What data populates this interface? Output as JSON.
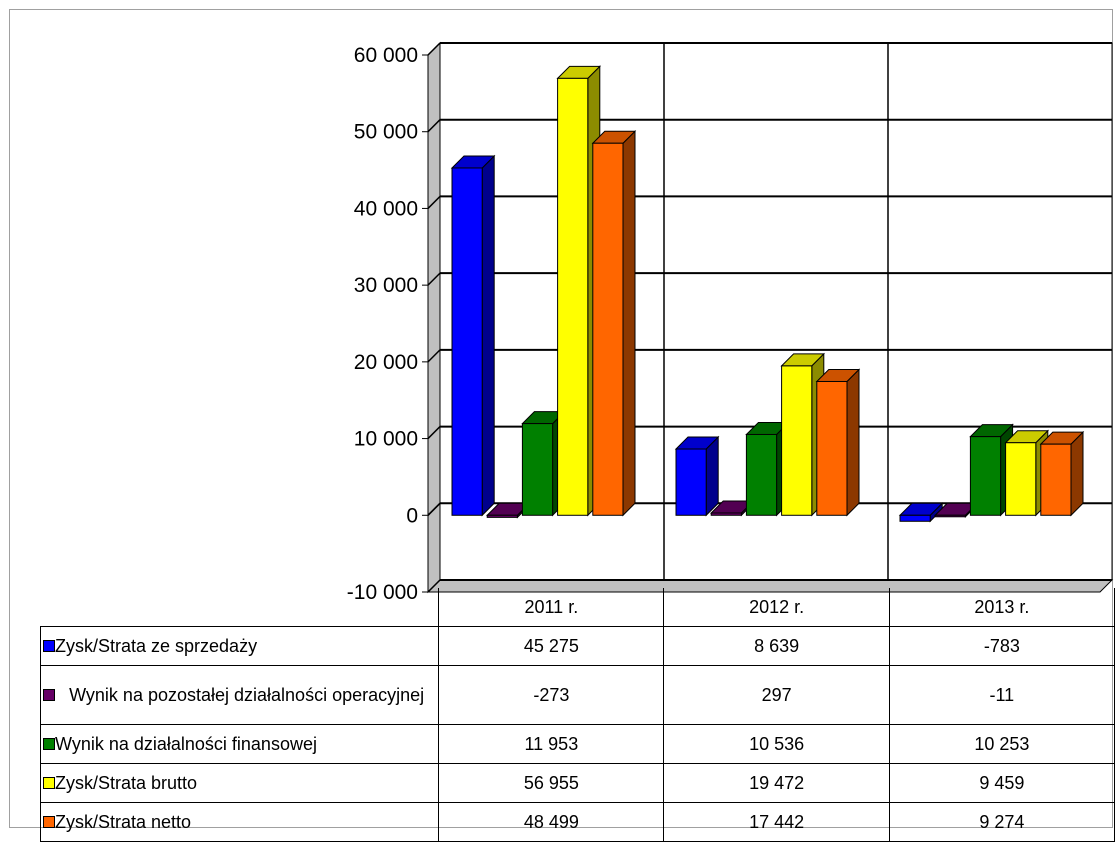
{
  "chart_data": {
    "type": "bar",
    "categories": [
      "2011 r.",
      "2012 r.",
      "2013 r."
    ],
    "series": [
      {
        "name": "Zysk/Strata ze sprzedaży",
        "values": [
          45275,
          8639,
          -783
        ],
        "labels": [
          "45 275",
          "8 639",
          "-783"
        ],
        "color": "#0000ff"
      },
      {
        "name": "Wynik na pozostałej działalności operacyjnej",
        "values": [
          -273,
          297,
          -11
        ],
        "labels": [
          "-273",
          "297",
          "-11"
        ],
        "color": "#660066"
      },
      {
        "name": "Wynik na działalności finansowej",
        "values": [
          11953,
          10536,
          10253
        ],
        "labels": [
          "11 953",
          "10 536",
          "10 253"
        ],
        "color": "#008000"
      },
      {
        "name": "Zysk/Strata brutto",
        "values": [
          56955,
          19472,
          9459
        ],
        "labels": [
          "56 955",
          "19 472",
          "9 459"
        ],
        "color": "#ffff00"
      },
      {
        "name": "Zysk/Strata netto",
        "values": [
          48499,
          17442,
          9274
        ],
        "labels": [
          "48 499",
          "17 442",
          "9 274"
        ],
        "color": "#ff6600"
      }
    ],
    "ylim": [
      -10000,
      60000
    ],
    "yticks": [
      60000,
      50000,
      40000,
      30000,
      20000,
      10000,
      0,
      -10000
    ],
    "ytick_labels": [
      "60 000",
      "50 000",
      "40 000",
      "30 000",
      "20 000",
      "10 000",
      "0",
      "-10 000"
    ],
    "grid": true,
    "legend": "data table below chart",
    "style": "3d clustered columns"
  }
}
